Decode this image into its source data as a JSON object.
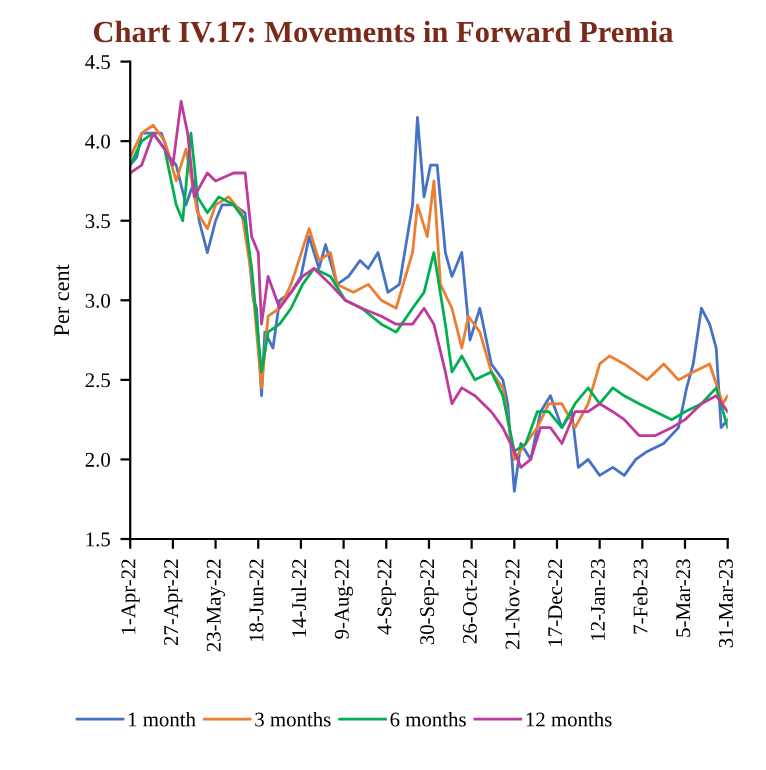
{
  "chart_data": {
    "type": "line",
    "title": "Chart IV.17: Movements in Forward Premia",
    "ylabel": "Per cent",
    "ylim": [
      1.5,
      4.5
    ],
    "yticks": [
      {
        "value": 1.5,
        "label": "1.5"
      },
      {
        "value": 2.0,
        "label": "2.0"
      },
      {
        "value": 2.5,
        "label": "2.5"
      },
      {
        "value": 3.0,
        "label": "3.0"
      },
      {
        "value": 3.5,
        "label": "3.5"
      },
      {
        "value": 4.0,
        "label": "4.0"
      },
      {
        "value": 4.5,
        "label": "4.5"
      }
    ],
    "xlim": [
      "2022-04-01",
      "2023-03-31"
    ],
    "xticks": [
      {
        "value": "2022-04-01",
        "label": "1-Apr-22"
      },
      {
        "value": "2022-04-27",
        "label": "27-Apr-22"
      },
      {
        "value": "2022-05-23",
        "label": "23-May-22"
      },
      {
        "value": "2022-06-18",
        "label": "18-Jun-22"
      },
      {
        "value": "2022-07-14",
        "label": "14-Jul-22"
      },
      {
        "value": "2022-08-09",
        "label": "9-Aug-22"
      },
      {
        "value": "2022-09-04",
        "label": "4-Sep-22"
      },
      {
        "value": "2022-09-30",
        "label": "30-Sep-22"
      },
      {
        "value": "2022-10-26",
        "label": "26-Oct-22"
      },
      {
        "value": "2022-11-21",
        "label": "21-Nov-22"
      },
      {
        "value": "2022-12-17",
        "label": "17-Dec-22"
      },
      {
        "value": "2023-01-12",
        "label": "12-Jan-23"
      },
      {
        "value": "2023-02-07",
        "label": "7-Feb-23"
      },
      {
        "value": "2023-03-05",
        "label": "5-Mar-23"
      },
      {
        "value": "2023-03-31",
        "label": "31-Mar-23"
      }
    ],
    "grid": false,
    "legend": "bottom",
    "marker": "none",
    "line_style": "solid",
    "series": [
      {
        "name": "1 month",
        "color": "#4472c4",
        "x": [
          "2022-04-01",
          "2022-04-05",
          "2022-04-08",
          "2022-04-14",
          "2022-04-20",
          "2022-04-25",
          "2022-04-29",
          "2022-05-05",
          "2022-05-10",
          "2022-05-13",
          "2022-05-18",
          "2022-05-23",
          "2022-05-27",
          "2022-06-03",
          "2022-06-10",
          "2022-06-15",
          "2022-06-17",
          "2022-06-20",
          "2022-06-22",
          "2022-06-27",
          "2022-07-01",
          "2022-07-08",
          "2022-07-14",
          "2022-07-19",
          "2022-07-25",
          "2022-07-29",
          "2022-08-05",
          "2022-08-12",
          "2022-08-19",
          "2022-08-24",
          "2022-08-30",
          "2022-09-05",
          "2022-09-12",
          "2022-09-20",
          "2022-09-23",
          "2022-09-27",
          "2022-10-01",
          "2022-10-05",
          "2022-10-10",
          "2022-10-14",
          "2022-10-20",
          "2022-10-25",
          "2022-10-31",
          "2022-11-07",
          "2022-11-14",
          "2022-11-17",
          "2022-11-21",
          "2022-11-25",
          "2022-12-01",
          "2022-12-07",
          "2022-12-13",
          "2022-12-20",
          "2022-12-26",
          "2022-12-30",
          "2023-01-05",
          "2023-01-12",
          "2023-01-20",
          "2023-01-27",
          "2023-02-03",
          "2023-02-10",
          "2023-02-20",
          "2023-03-01",
          "2023-03-06",
          "2023-03-10",
          "2023-03-15",
          "2023-03-20",
          "2023-03-24",
          "2023-03-27",
          "2023-03-31"
        ],
        "values": [
          3.85,
          3.9,
          4.05,
          4.05,
          4.05,
          3.9,
          3.85,
          3.6,
          3.75,
          3.5,
          3.3,
          3.5,
          3.6,
          3.6,
          3.55,
          3.0,
          2.95,
          2.4,
          2.8,
          2.7,
          3.0,
          3.05,
          3.15,
          3.4,
          3.2,
          3.35,
          3.1,
          3.15,
          3.25,
          3.2,
          3.3,
          3.05,
          3.1,
          3.6,
          4.15,
          3.65,
          3.85,
          3.85,
          3.3,
          3.15,
          3.3,
          2.75,
          2.95,
          2.6,
          2.5,
          2.35,
          1.8,
          2.1,
          2.0,
          2.3,
          2.4,
          2.2,
          2.3,
          1.95,
          2.0,
          1.9,
          1.95,
          1.9,
          2.0,
          2.05,
          2.1,
          2.2,
          2.45,
          2.6,
          2.95,
          2.85,
          2.7,
          2.2,
          2.25
        ]
      },
      {
        "name": "3 months",
        "color": "#ed7d31",
        "x": [
          "2022-04-01",
          "2022-04-08",
          "2022-04-15",
          "2022-04-22",
          "2022-04-29",
          "2022-05-05",
          "2022-05-12",
          "2022-05-18",
          "2022-05-23",
          "2022-05-31",
          "2022-06-08",
          "2022-06-14",
          "2022-06-20",
          "2022-06-24",
          "2022-07-01",
          "2022-07-08",
          "2022-07-19",
          "2022-07-25",
          "2022-08-01",
          "2022-08-05",
          "2022-08-15",
          "2022-08-24",
          "2022-09-01",
          "2022-09-10",
          "2022-09-20",
          "2022-09-23",
          "2022-09-29",
          "2022-10-03",
          "2022-10-07",
          "2022-10-14",
          "2022-10-20",
          "2022-10-24",
          "2022-10-31",
          "2022-11-07",
          "2022-11-14",
          "2022-11-21",
          "2022-11-28",
          "2022-12-05",
          "2022-12-12",
          "2022-12-20",
          "2022-12-28",
          "2023-01-05",
          "2023-01-12",
          "2023-01-18",
          "2023-01-27",
          "2023-02-03",
          "2023-02-10",
          "2023-02-20",
          "2023-03-01",
          "2023-03-10",
          "2023-03-20",
          "2023-03-28",
          "2023-03-31"
        ],
        "values": [
          3.9,
          4.05,
          4.1,
          4.0,
          3.75,
          3.95,
          3.55,
          3.45,
          3.6,
          3.65,
          3.55,
          3.15,
          2.45,
          2.9,
          2.95,
          3.1,
          3.45,
          3.25,
          3.3,
          3.1,
          3.05,
          3.1,
          3.0,
          2.95,
          3.3,
          3.6,
          3.4,
          3.75,
          3.1,
          2.95,
          2.7,
          2.9,
          2.8,
          2.55,
          2.45,
          2.0,
          2.1,
          2.2,
          2.35,
          2.35,
          2.2,
          2.35,
          2.6,
          2.65,
          2.6,
          2.55,
          2.5,
          2.6,
          2.5,
          2.55,
          2.6,
          2.35,
          2.4
        ]
      },
      {
        "name": "6 months",
        "color": "#00b050",
        "x": [
          "2022-04-01",
          "2022-04-08",
          "2022-04-15",
          "2022-04-22",
          "2022-04-29",
          "2022-05-03",
          "2022-05-08",
          "2022-05-12",
          "2022-05-18",
          "2022-05-25",
          "2022-06-03",
          "2022-06-10",
          "2022-06-14",
          "2022-06-20",
          "2022-06-24",
          "2022-07-01",
          "2022-07-08",
          "2022-07-15",
          "2022-07-22",
          "2022-08-01",
          "2022-08-10",
          "2022-08-20",
          "2022-09-01",
          "2022-09-10",
          "2022-09-20",
          "2022-09-27",
          "2022-10-03",
          "2022-10-10",
          "2022-10-14",
          "2022-10-20",
          "2022-10-28",
          "2022-11-07",
          "2022-11-14",
          "2022-11-21",
          "2022-11-28",
          "2022-12-05",
          "2022-12-12",
          "2022-12-20",
          "2022-12-28",
          "2023-01-05",
          "2023-01-12",
          "2023-01-20",
          "2023-01-27",
          "2023-02-05",
          "2023-02-15",
          "2023-02-25",
          "2023-03-05",
          "2023-03-15",
          "2023-03-24",
          "2023-03-31"
        ],
        "values": [
          3.85,
          4.0,
          4.05,
          3.95,
          3.6,
          3.5,
          4.05,
          3.65,
          3.55,
          3.65,
          3.6,
          3.5,
          3.2,
          2.55,
          2.8,
          2.85,
          2.95,
          3.1,
          3.2,
          3.15,
          3.0,
          2.95,
          2.85,
          2.8,
          2.95,
          3.05,
          3.3,
          2.85,
          2.55,
          2.65,
          2.5,
          2.55,
          2.4,
          2.05,
          2.1,
          2.3,
          2.3,
          2.2,
          2.35,
          2.45,
          2.35,
          2.45,
          2.4,
          2.35,
          2.3,
          2.25,
          2.3,
          2.35,
          2.45,
          2.2
        ]
      },
      {
        "name": "12 months",
        "color": "#c0399c",
        "x": [
          "2022-04-01",
          "2022-04-08",
          "2022-04-15",
          "2022-04-22",
          "2022-04-27",
          "2022-05-02",
          "2022-05-06",
          "2022-05-10",
          "2022-05-18",
          "2022-05-23",
          "2022-06-03",
          "2022-06-10",
          "2022-06-14",
          "2022-06-18",
          "2022-06-20",
          "2022-06-24",
          "2022-07-01",
          "2022-07-08",
          "2022-07-15",
          "2022-07-22",
          "2022-08-01",
          "2022-08-10",
          "2022-08-20",
          "2022-09-01",
          "2022-09-10",
          "2022-09-20",
          "2022-09-27",
          "2022-10-03",
          "2022-10-10",
          "2022-10-14",
          "2022-10-20",
          "2022-10-28",
          "2022-11-07",
          "2022-11-14",
          "2022-11-21",
          "2022-11-25",
          "2022-12-01",
          "2022-12-07",
          "2022-12-13",
          "2022-12-20",
          "2022-12-28",
          "2023-01-05",
          "2023-01-12",
          "2023-01-20",
          "2023-01-27",
          "2023-02-05",
          "2023-02-15",
          "2023-02-25",
          "2023-03-05",
          "2023-03-15",
          "2023-03-24",
          "2023-03-31"
        ],
        "values": [
          3.8,
          3.85,
          4.05,
          3.95,
          3.85,
          4.25,
          4.05,
          3.65,
          3.8,
          3.75,
          3.8,
          3.8,
          3.4,
          3.3,
          2.85,
          3.15,
          2.95,
          3.05,
          3.15,
          3.2,
          3.1,
          3.0,
          2.95,
          2.9,
          2.85,
          2.85,
          2.95,
          2.85,
          2.55,
          2.35,
          2.45,
          2.4,
          2.3,
          2.2,
          2.05,
          1.95,
          2.0,
          2.2,
          2.2,
          2.1,
          2.3,
          2.3,
          2.35,
          2.3,
          2.25,
          2.15,
          2.15,
          2.2,
          2.25,
          2.35,
          2.4,
          2.3
        ]
      }
    ]
  }
}
